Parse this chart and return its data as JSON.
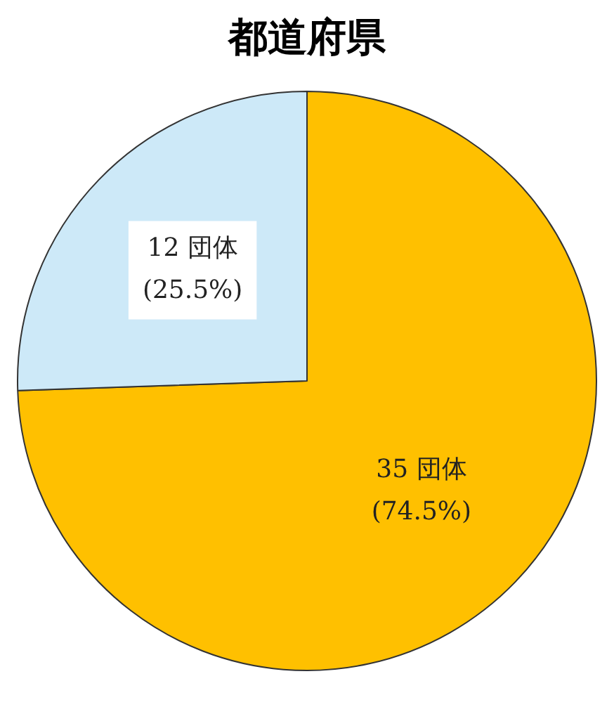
{
  "chart_data": {
    "type": "pie",
    "title": "都道府県",
    "categories": [
      null,
      null
    ],
    "values": [
      35,
      12
    ],
    "colors": [
      "#ffc000",
      "#cde9f8"
    ],
    "value_labels": [
      "35 団体\n(74.5%)",
      "12 団体\n(25.5%)"
    ],
    "legend": false
  }
}
